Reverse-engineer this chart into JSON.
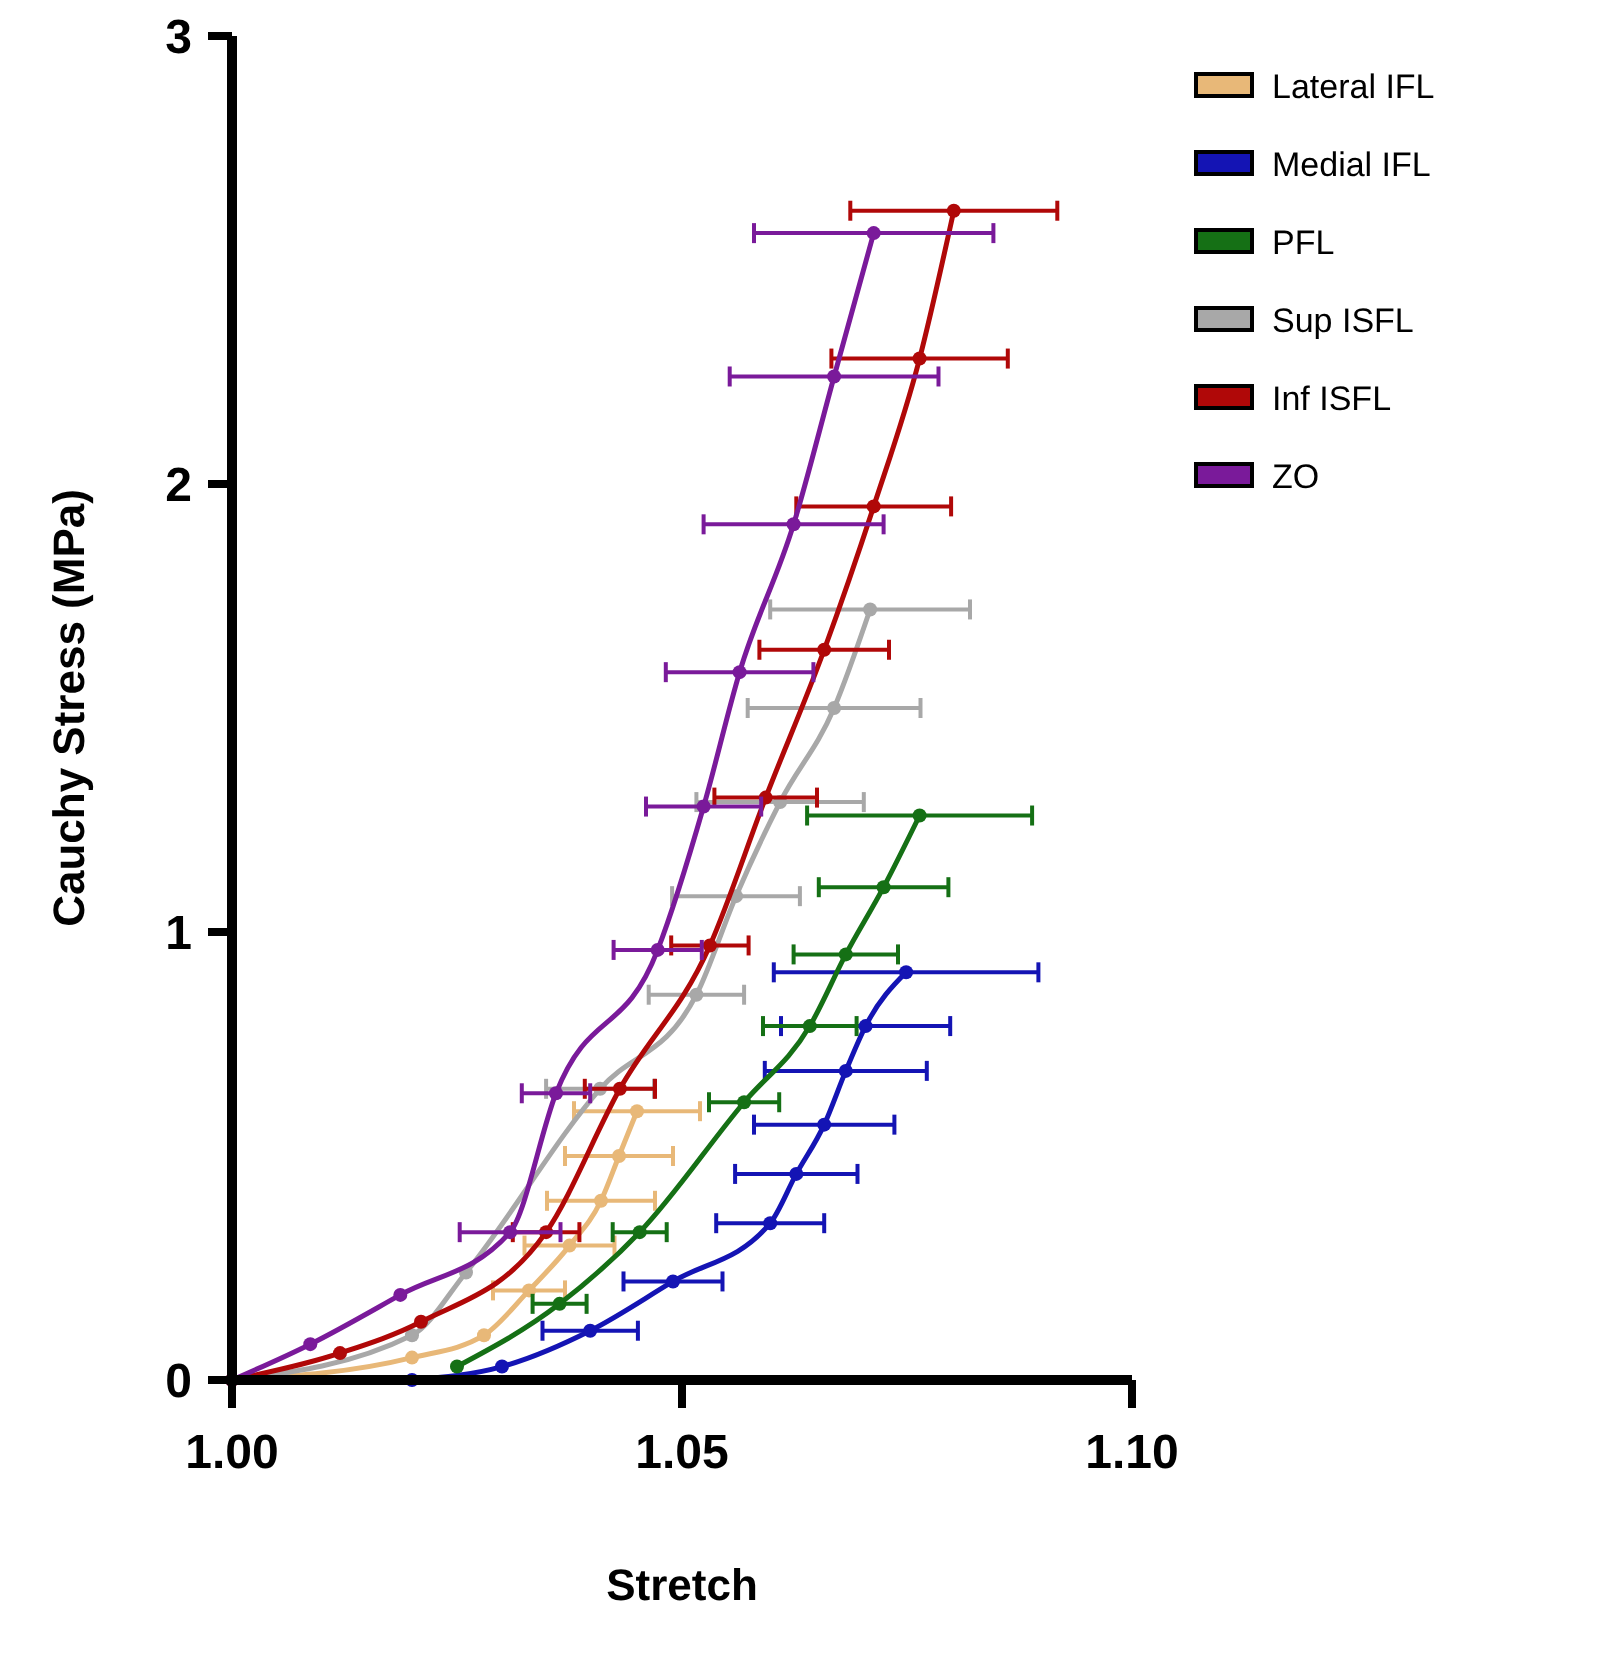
{
  "chart_data": {
    "type": "line",
    "xlabel": "Stretch",
    "ylabel": "Cauchy Stress (MPa)",
    "xlim": [
      1.0,
      1.1
    ],
    "ylim": [
      0,
      3
    ],
    "xticks": [
      {
        "value": 1.0,
        "label": "1.00"
      },
      {
        "value": 1.05,
        "label": "1.05"
      },
      {
        "value": 1.1,
        "label": "1.10"
      }
    ],
    "yticks": [
      0,
      1,
      2,
      3
    ],
    "grid": false,
    "legend": "right",
    "marker": "circle",
    "line_style": "solid",
    "series": [
      {
        "name": "Lateral IFL",
        "color": "#e8b878",
        "x": [
          1.0,
          1.02,
          1.028,
          1.033,
          1.0375,
          1.041,
          1.043,
          1.045
        ],
        "values": [
          0,
          0.05,
          0.1,
          0.2,
          0.3,
          0.4,
          0.5,
          0.6
        ],
        "xerrors": [
          null,
          null,
          null,
          0.004,
          0.005,
          0.006,
          0.006,
          0.007
        ]
      },
      {
        "name": "Medial IFL",
        "color": "#1414b4",
        "x": [
          1.02,
          1.03,
          1.0398,
          1.049,
          1.0598,
          1.0627,
          1.0658,
          1.0682,
          1.0704,
          1.0749
        ],
        "values": [
          0,
          0.03,
          0.11,
          0.22,
          0.35,
          0.46,
          0.57,
          0.69,
          0.79,
          0.91
        ],
        "xerrors": [
          null,
          null,
          0.0053,
          0.0055,
          0.006,
          0.0068,
          0.0078,
          0.009,
          0.0094,
          0.0147
        ]
      },
      {
        "name": "PFL",
        "color": "#157015",
        "x": [
          1.025,
          1.0364,
          1.0453,
          1.0569,
          1.0642,
          1.0682,
          1.0724,
          1.0764
        ],
        "values": [
          0.03,
          0.17,
          0.33,
          0.62,
          0.79,
          0.95,
          1.1,
          1.26
        ],
        "xerrors": [
          null,
          0.003,
          0.003,
          0.0039,
          0.0052,
          0.0058,
          0.0072,
          0.0125
        ]
      },
      {
        "name": "Sup ISFL",
        "color": "#a8a8a8",
        "x": [
          1.0,
          1.02,
          1.026,
          1.0409,
          1.0516,
          1.056,
          1.0609,
          1.0669,
          1.0709
        ],
        "values": [
          0,
          0.1,
          0.24,
          0.65,
          0.86,
          1.08,
          1.29,
          1.5,
          1.72
        ],
        "xerrors": [
          null,
          null,
          null,
          0.006,
          0.0053,
          0.0071,
          0.0093,
          0.0096,
          0.0111
        ]
      },
      {
        "name": "Inf ISFL",
        "color": "#b00808",
        "x": [
          1.0,
          1.012,
          1.021,
          1.0349,
          1.0431,
          1.0531,
          1.0593,
          1.0658,
          1.0713,
          1.0764,
          1.0802
        ],
        "values": [
          0,
          0.06,
          0.13,
          0.33,
          0.65,
          0.97,
          1.3,
          1.63,
          1.95,
          2.28,
          2.61
        ],
        "xerrors": [
          null,
          null,
          null,
          0.0037,
          0.0039,
          0.0043,
          0.0057,
          0.0072,
          0.0086,
          0.0098,
          0.0115
        ]
      },
      {
        "name": "ZO",
        "color": "#7a1a9a",
        "x": [
          1.0,
          1.0087,
          1.0187,
          1.0309,
          1.036,
          1.0473,
          1.0524,
          1.0564,
          1.0624,
          1.0669,
          1.0713
        ],
        "values": [
          0,
          0.08,
          0.19,
          0.33,
          0.64,
          0.96,
          1.28,
          1.58,
          1.91,
          2.24,
          2.56
        ],
        "xerrors": [
          null,
          null,
          null,
          0.0056,
          0.0038,
          0.0049,
          0.0064,
          0.0082,
          0.01,
          0.0116,
          0.0133
        ]
      }
    ]
  }
}
